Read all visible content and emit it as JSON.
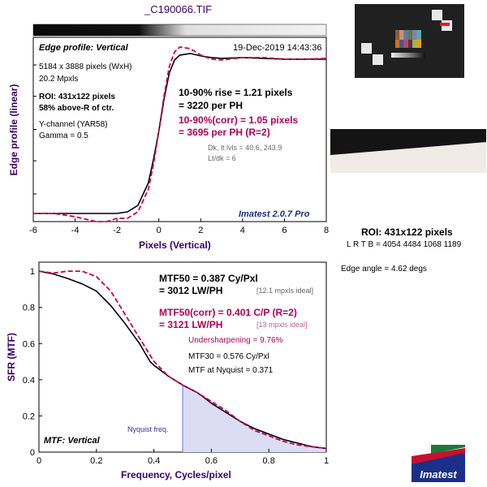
{
  "file_title": "_C190066.TIF",
  "colors": {
    "measured": "#000000",
    "corrected": "#c8004f",
    "axis_label": "#3a0066",
    "nyquist_fill": "#dcdcf5",
    "nyquist_line": "#7070e0",
    "brand_blue": "#1a2f8a",
    "brand_red": "#c8102e",
    "brand_green": "#1a7a3a"
  },
  "top": {
    "title": "Edge profile: Vertical",
    "date": "19-Dec-2019 14:43:36",
    "info": [
      "5184 x 3888 pixels (WxH)",
      "20.2 Mpxls"
    ],
    "roi_lines": [
      "ROI: 431x122 pixels",
      "58% above-R of ctr."
    ],
    "channel_lines": [
      "Y-channel  (YAR58)",
      "Gamma = 0.5"
    ],
    "rise_lines": [
      "10-90% rise = 1.21 pixels",
      "= 3220 per PH"
    ],
    "corr_lines": [
      "10-90%(corr) = 1.05 pixels",
      "= 3695 per PH  (R=2)"
    ],
    "small_lines": [
      "Dk, lt lvls = 40.6, 243.9",
      "Lt/dk = 6"
    ],
    "version": "Imatest 2.0.7 Pro",
    "ylabel": "Edge profile (linear)",
    "xlabel": "Pixels (Vertical)"
  },
  "bottom": {
    "title": "MTF: Vertical",
    "ylabel": "SFR (MTF)",
    "xlabel": "Frequency, Cycles/pixel",
    "nyquist_label": "Nyquist freq.",
    "mtf50_lines": [
      "MTF50 = 0.387 Cy/Pxl",
      "= 3012 LW/PH"
    ],
    "mtf50_ideal": "[12.1 mpxls ideal]",
    "mtf50corr_lines": [
      "MTF50(corr) = 0.401 C/P  (R=2)",
      "= 3121 LW/PH"
    ],
    "mtf50corr_ideal": "[13 mpxls ideal]",
    "undersharpening": "Undersharpening = 9.76%",
    "mtf30": "MTF30 = 0.576 Cy/Pxl",
    "nyquist_mtf": "MTF at Nyquist = 0.371"
  },
  "right_panel": {
    "roi": "ROI: 431x122 pixels",
    "lrtb": "L R  T B = 4054 4484  1068 1189",
    "edge_angle": "Edge angle = 4.62 degs",
    "logo_text": "Imatest"
  },
  "chart_data": [
    {
      "type": "line",
      "title": "Edge profile: Vertical",
      "xlabel": "Pixels (Vertical)",
      "ylabel": "Edge profile (linear)",
      "xlim": [
        -6,
        8
      ],
      "xticks": [
        -6,
        -4,
        -2,
        0,
        2,
        4,
        6,
        8
      ],
      "ylim": [
        0,
        1.1
      ],
      "series": [
        {
          "x": [
            -6,
            -5,
            -4,
            -3,
            -2.5,
            -2,
            -1.5,
            -1,
            -0.5,
            -0.25,
            0,
            0.25,
            0.5,
            0.75,
            1,
            1.5,
            2,
            2.5,
            3,
            4,
            5,
            6,
            7,
            8
          ],
          "values": [
            0.01,
            0.01,
            0.01,
            0.01,
            0.01,
            0.01,
            0.02,
            0.06,
            0.2,
            0.35,
            0.52,
            0.72,
            0.88,
            0.96,
            0.99,
            1.0,
            0.985,
            0.975,
            0.97,
            0.975,
            0.97,
            0.965,
            0.965,
            0.965
          ]
        },
        {
          "x": [
            -6,
            -5,
            -4,
            -3,
            -2.5,
            -2,
            -1.5,
            -1,
            -0.5,
            -0.25,
            0,
            0.25,
            0.5,
            0.75,
            1,
            1.5,
            2,
            2.5,
            3,
            4,
            5,
            6,
            7,
            8
          ],
          "values": [
            0.01,
            0.01,
            -0.01,
            -0.04,
            -0.04,
            -0.02,
            -0.02,
            0.02,
            0.16,
            0.32,
            0.52,
            0.74,
            0.92,
            1.01,
            1.04,
            1.03,
            0.99,
            0.965,
            0.96,
            0.975,
            0.975,
            0.965,
            0.965,
            0.97
          ]
        }
      ]
    },
    {
      "type": "line",
      "title": "MTF: Vertical",
      "xlabel": "Frequency, Cycles/pixel",
      "ylabel": "SFR (MTF)",
      "xlim": [
        0,
        1
      ],
      "ylim": [
        0,
        1.05
      ],
      "xticks": [
        0,
        0.2,
        0.4,
        0.6,
        0.8,
        1
      ],
      "yticks": [
        0,
        0.2,
        0.4,
        0.6,
        0.8,
        1
      ],
      "nyquist": 0.5,
      "series": [
        {
          "x": [
            0,
            0.05,
            0.1,
            0.15,
            0.2,
            0.25,
            0.3,
            0.35,
            0.387,
            0.4,
            0.45,
            0.5,
            0.55,
            0.576,
            0.6,
            0.65,
            0.7,
            0.75,
            0.8,
            0.85,
            0.9,
            0.95,
            1.0
          ],
          "values": [
            1.0,
            0.985,
            0.96,
            0.93,
            0.89,
            0.81,
            0.71,
            0.6,
            0.5,
            0.48,
            0.42,
            0.371,
            0.33,
            0.3,
            0.27,
            0.22,
            0.17,
            0.13,
            0.1,
            0.07,
            0.05,
            0.03,
            0.02
          ]
        },
        {
          "x": [
            0,
            0.05,
            0.1,
            0.15,
            0.2,
            0.25,
            0.3,
            0.35,
            0.401,
            0.45,
            0.5,
            0.55,
            0.6,
            0.65,
            0.7,
            0.75,
            0.8,
            0.85,
            0.9,
            0.95,
            1.0
          ],
          "values": [
            1.0,
            0.99,
            1.0,
            1.0,
            0.97,
            0.89,
            0.76,
            0.63,
            0.5,
            0.42,
            0.37,
            0.33,
            0.28,
            0.23,
            0.17,
            0.12,
            0.09,
            0.06,
            0.04,
            0.03,
            0.02
          ]
        }
      ]
    }
  ]
}
